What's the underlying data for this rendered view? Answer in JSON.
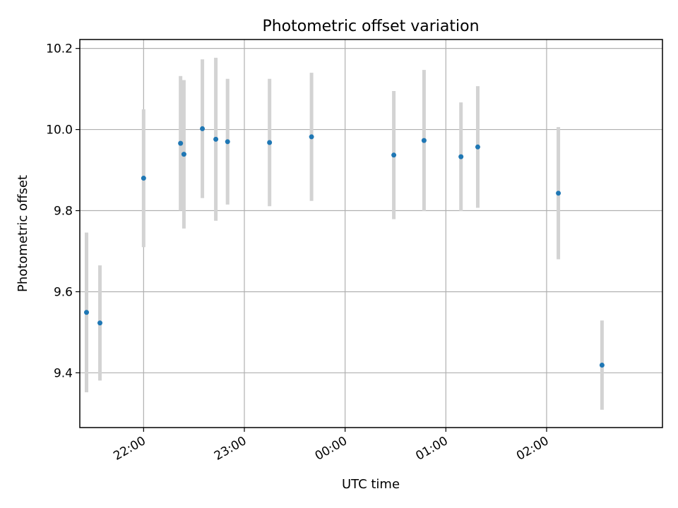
{
  "chart_data": {
    "type": "scatter",
    "title": "Photometric offset variation",
    "xlabel": "UTC time",
    "ylabel": "Photometric offset",
    "x_tick_labels": [
      "22:00",
      "23:00",
      "00:00",
      "01:00",
      "02:00"
    ],
    "x_ticks": [
      "22:00",
      "23:00",
      "00:00",
      "01:00",
      "02:00"
    ],
    "y_ticks": [
      9.4,
      9.6,
      9.8,
      10.0,
      10.2
    ],
    "y_tick_labels": [
      "9.4",
      "9.6",
      "9.8",
      "10.0",
      "10.2"
    ],
    "xlim": [
      "21:30",
      "03:09"
    ],
    "ylim": [
      9.265,
      10.222
    ],
    "grid": true,
    "marker_color": "#1f77b4",
    "errorbar_color": "#d3d3d3",
    "series": [
      {
        "points": [
          {
            "x": "21:26",
            "y": 9.549,
            "yerr": 0.197
          },
          {
            "x": "21:34",
            "y": 9.523,
            "yerr": 0.142
          },
          {
            "x": "22:00",
            "y": 9.88,
            "yerr": 0.17
          },
          {
            "x": "22:22",
            "y": 9.966,
            "yerr": 0.166
          },
          {
            "x": "22:24",
            "y": 9.939,
            "yerr": 0.183
          },
          {
            "x": "22:35",
            "y": 10.002,
            "yerr": 0.171
          },
          {
            "x": "22:43",
            "y": 9.976,
            "yerr": 0.201
          },
          {
            "x": "22:50",
            "y": 9.97,
            "yerr": 0.155
          },
          {
            "x": "23:15",
            "y": 9.968,
            "yerr": 0.157
          },
          {
            "x": "23:40",
            "y": 9.982,
            "yerr": 0.158
          },
          {
            "x": "00:29",
            "y": 9.937,
            "yerr": 0.158
          },
          {
            "x": "00:47",
            "y": 9.973,
            "yerr": 0.174
          },
          {
            "x": "01:09",
            "y": 9.933,
            "yerr": 0.134
          },
          {
            "x": "01:19",
            "y": 9.957,
            "yerr": 0.15
          },
          {
            "x": "02:07",
            "y": 9.843,
            "yerr": 0.163
          },
          {
            "x": "02:33",
            "y": 9.419,
            "yerr": 0.11
          }
        ]
      }
    ]
  }
}
